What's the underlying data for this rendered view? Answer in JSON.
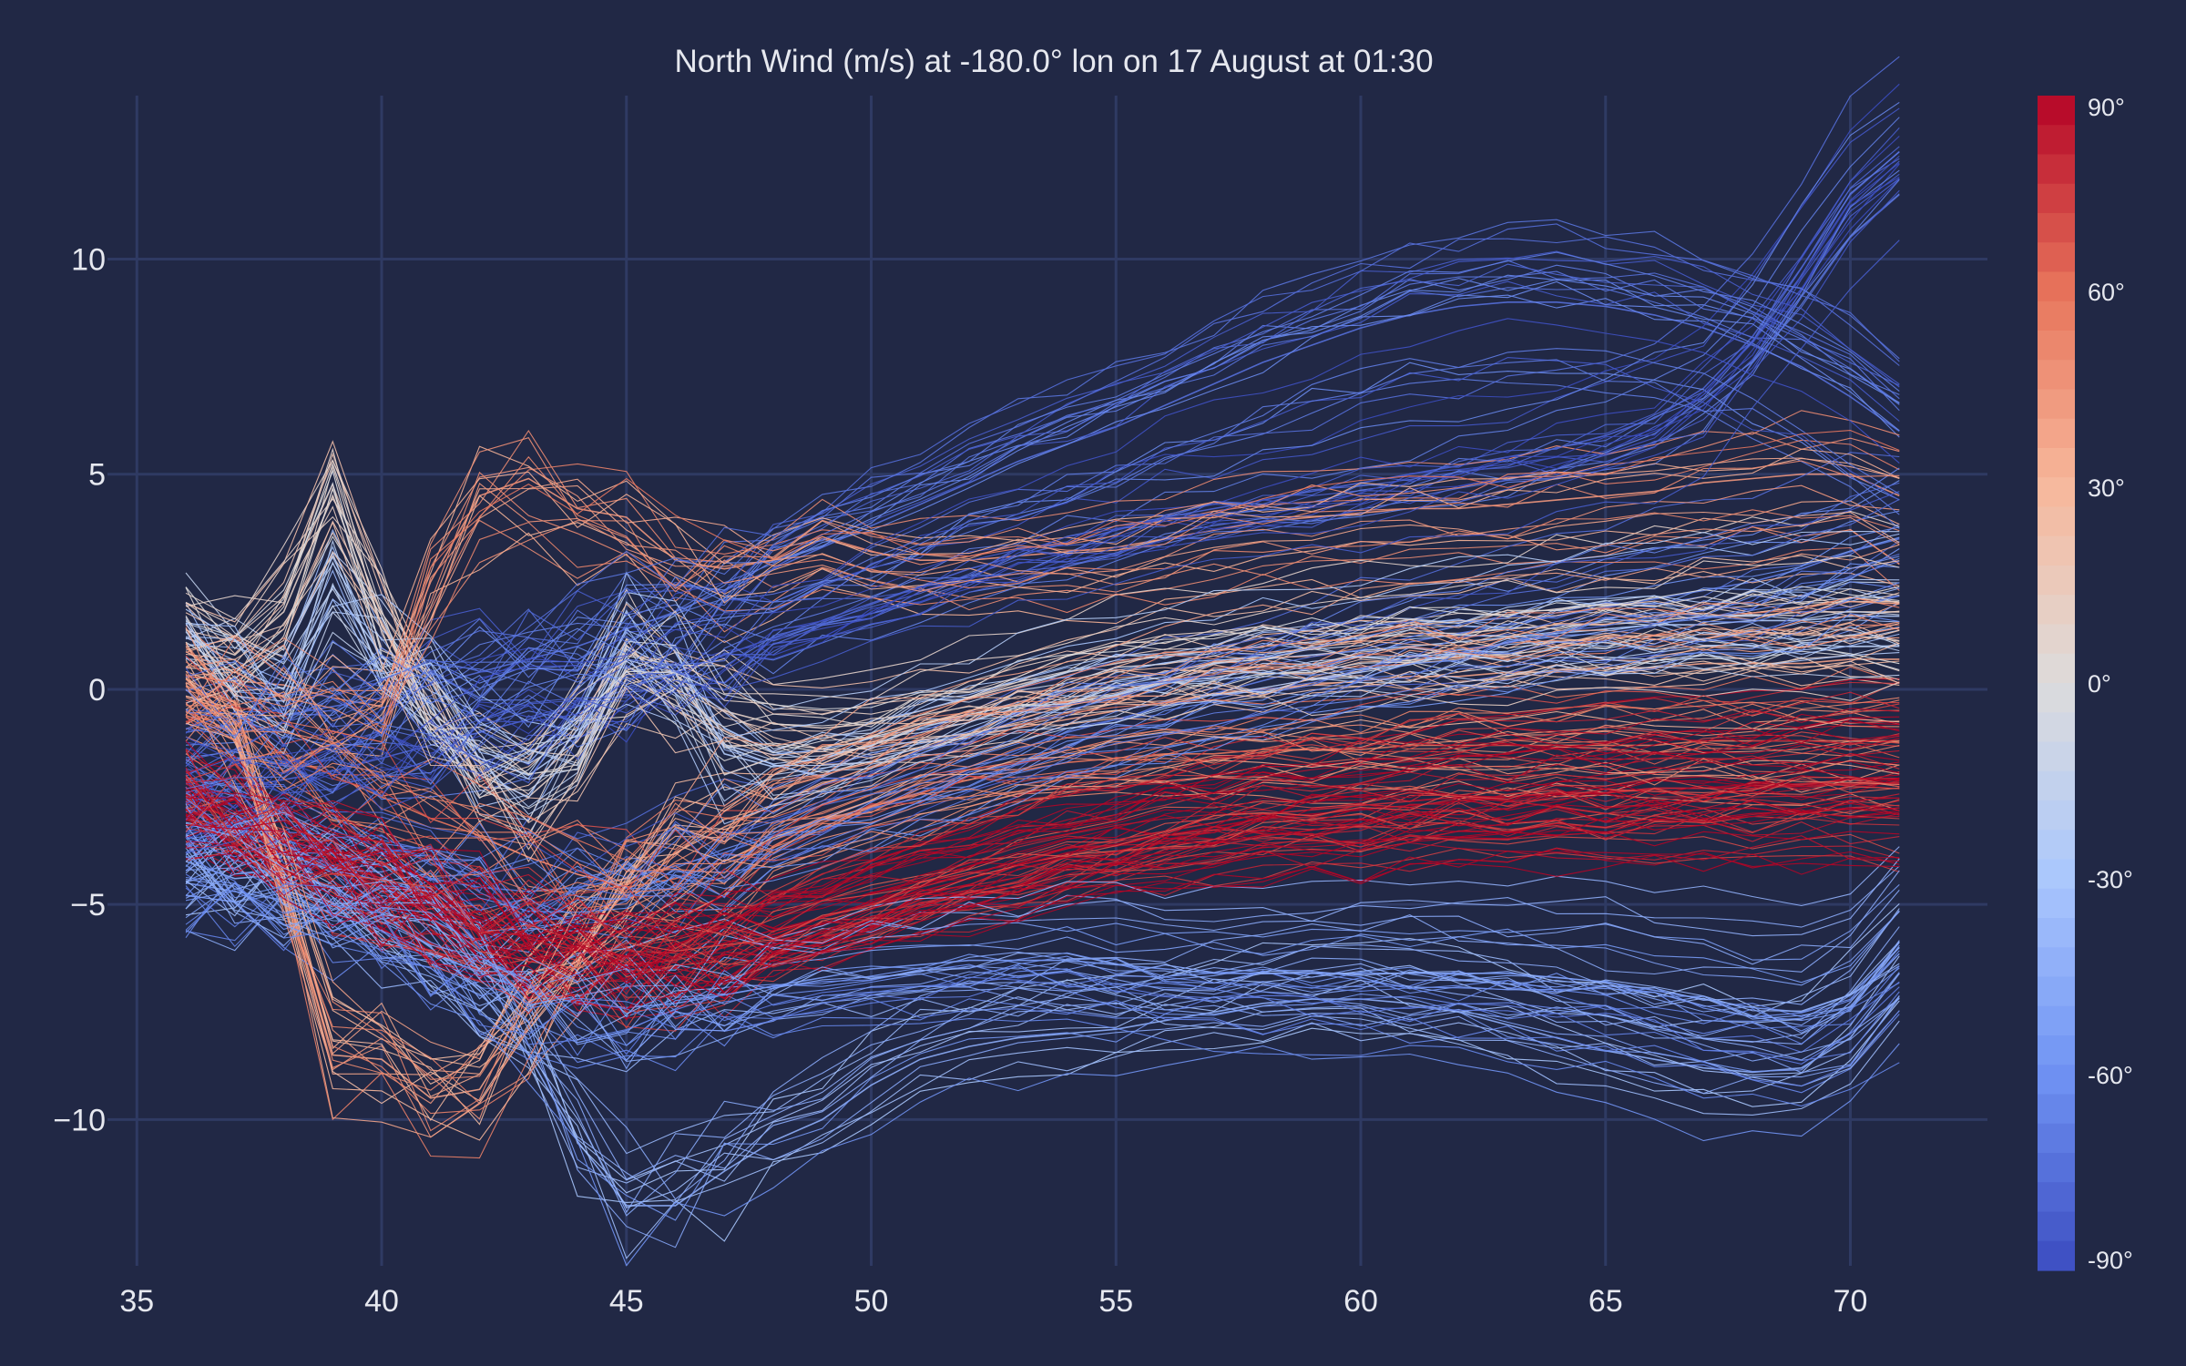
{
  "chart_data": {
    "type": "line",
    "title": "North Wind (m/s) at -180.0° lon on 17 August at 01:30",
    "xlabel": "",
    "ylabel": "",
    "xlim": [
      34.4,
      72.8
    ],
    "ylim": [
      -13.4,
      13.8
    ],
    "x_ticks": [
      35,
      40,
      45,
      50,
      55,
      60,
      65,
      70
    ],
    "y_ticks": [
      10,
      5,
      0,
      -5,
      -10
    ],
    "y_tick_labels": [
      "10",
      "5",
      "0",
      "−5",
      "−10"
    ],
    "grid": true,
    "x": [
      36,
      37,
      38,
      39,
      40,
      41,
      42,
      43,
      44,
      45,
      46,
      47,
      48,
      49,
      50,
      51,
      52,
      53,
      54,
      55,
      56,
      57,
      58,
      59,
      60,
      61,
      62,
      63,
      64,
      65,
      66,
      67,
      68,
      69,
      70,
      71
    ],
    "colorbar": {
      "title": "",
      "range": [
        -90,
        90
      ],
      "ticks": [
        90,
        60,
        30,
        0,
        -30,
        -60,
        -90
      ],
      "tick_labels": [
        "90°",
        "60°",
        "30°",
        "0°",
        "-30°",
        "-60°",
        "-90°"
      ],
      "colormap": "coolwarm",
      "colors": [
        "#3b4cc0",
        "#6f92f3",
        "#aac7fd",
        "#dddcdc",
        "#f7b89c",
        "#e7745b",
        "#b40426"
      ]
    },
    "line_count": 280,
    "series": [
      {
        "name": "",
        "color_value": 90,
        "values": [
          -2.6,
          -3.0,
          -3.4,
          -3.9,
          -4.4,
          -4.9,
          -5.3,
          -5.7,
          -6.0,
          -6.2,
          -6.1,
          -5.9,
          -5.6,
          -5.3,
          -5.0,
          -4.7,
          -4.4,
          -4.1,
          -3.8,
          -3.6,
          -3.4,
          -3.2,
          -3.0,
          -2.9,
          -2.8,
          -2.7,
          -2.6,
          -2.5,
          -2.4,
          -2.4,
          -2.3,
          -2.3,
          -2.2,
          -2.2,
          -2.1,
          -2.1
        ]
      },
      {
        "name": "",
        "color_value": 80,
        "values": [
          -2.8,
          -3.2,
          -3.7,
          -4.2,
          -4.7,
          -5.2,
          -5.6,
          -6.0,
          -6.3,
          -6.4,
          -6.3,
          -6.0,
          -5.7,
          -5.3,
          -5.0,
          -4.6,
          -4.3,
          -4.0,
          -3.7,
          -3.5,
          -3.3,
          -3.1,
          -2.9,
          -2.8,
          -2.7,
          -2.6,
          -2.5,
          -2.5,
          -2.4,
          -2.4,
          -2.3,
          -2.3,
          -2.3,
          -2.2,
          -2.2,
          -2.2
        ]
      },
      {
        "name": "",
        "color_value": 60,
        "values": [
          -0.5,
          -1.0,
          -1.5,
          -2.0,
          -2.5,
          -3.0,
          -3.4,
          -3.9,
          -4.3,
          -4.6,
          -4.4,
          -4.0,
          -3.5,
          -3.1,
          -2.7,
          -2.4,
          -2.1,
          -1.9,
          -1.7,
          -1.6,
          -1.5,
          -1.5,
          -1.4,
          -1.4,
          -1.4,
          -1.3,
          -1.3,
          -1.3,
          -1.3,
          -1.3,
          -1.3,
          -1.2,
          -1.2,
          -1.2,
          -1.2,
          -1.2
        ]
      },
      {
        "name": "",
        "color_value": 45,
        "values": [
          0.3,
          0.2,
          0.1,
          -0.2,
          -0.4,
          2.5,
          4.5,
          4.9,
          4.2,
          4.0,
          3.0,
          2.8,
          3.0,
          3.5,
          3.2,
          3.0,
          3.0,
          3.1,
          3.2,
          3.3,
          3.5,
          3.7,
          3.9,
          4.0,
          4.1,
          4.2,
          4.2,
          4.3,
          4.4,
          4.5,
          4.6,
          4.8,
          4.9,
          5.0,
          5.0,
          4.5
        ]
      },
      {
        "name": "",
        "color_value": 40,
        "values": [
          0.0,
          -1.0,
          -4.5,
          -8.5,
          -8.6,
          -9.5,
          -9.3,
          -7.5,
          -6.0,
          -4.5,
          -3.8,
          -3.2,
          -2.7,
          -2.2,
          -1.8,
          -1.4,
          -1.1,
          -0.9,
          -0.7,
          -0.5,
          -0.3,
          -0.1,
          0.0,
          0.1,
          0.2,
          0.3,
          0.3,
          0.4,
          0.4,
          0.5,
          0.5,
          0.6,
          0.6,
          0.6,
          0.7,
          0.7
        ]
      },
      {
        "name": "",
        "color_value": 10,
        "values": [
          1.2,
          0.8,
          1.8,
          4.5,
          1.5,
          -0.5,
          -2.0,
          -2.5,
          -1.5,
          0.5,
          0.2,
          -0.5,
          -0.8,
          -0.9,
          -0.8,
          -0.5,
          -0.2,
          0.1,
          0.4,
          0.6,
          0.8,
          0.9,
          1.0,
          1.1,
          1.2,
          1.3,
          1.3,
          1.4,
          1.5,
          1.5,
          1.6,
          1.7,
          1.7,
          1.8,
          1.8,
          1.8
        ]
      },
      {
        "name": "",
        "color_value": -25,
        "values": [
          1.4,
          0.5,
          0.0,
          2.4,
          0.8,
          -0.3,
          -1.6,
          -2.0,
          -1.2,
          1.0,
          0.4,
          -1.5,
          -1.8,
          -1.6,
          -1.3,
          -0.9,
          -0.6,
          -0.3,
          0.0,
          0.2,
          0.4,
          0.6,
          0.7,
          0.8,
          0.9,
          1.0,
          1.1,
          1.2,
          1.3,
          1.4,
          1.5,
          1.5,
          1.6,
          1.6,
          1.7,
          1.7
        ]
      },
      {
        "name": "",
        "color_value": -45,
        "values": [
          -4.0,
          -4.4,
          -4.3,
          -4.6,
          -5.2,
          -6.0,
          -7.0,
          -8.5,
          -10.5,
          -12.0,
          -12.0,
          -11.2,
          -10.5,
          -10.0,
          -9.2,
          -8.6,
          -8.3,
          -8.1,
          -8.0,
          -7.9,
          -7.7,
          -7.5,
          -7.3,
          -7.2,
          -7.2,
          -7.3,
          -7.5,
          -7.8,
          -8.1,
          -8.4,
          -8.6,
          -8.8,
          -8.9,
          -8.8,
          -8.1,
          -6.6
        ]
      },
      {
        "name": "",
        "color_value": -55,
        "values": [
          -4.5,
          -4.7,
          -4.9,
          -5.2,
          -5.6,
          -6.1,
          -6.6,
          -7.0,
          -7.3,
          -7.4,
          -7.3,
          -7.1,
          -6.9,
          -6.7,
          -6.5,
          -6.4,
          -6.3,
          -6.3,
          -6.3,
          -6.4,
          -6.5,
          -6.6,
          -6.6,
          -6.6,
          -6.6,
          -6.6,
          -6.6,
          -6.6,
          -6.7,
          -6.8,
          -7.0,
          -7.2,
          -7.4,
          -7.5,
          -7.1,
          -6.0
        ]
      },
      {
        "name": "",
        "color_value": -75,
        "values": [
          -1.0,
          -0.8,
          -0.6,
          -0.4,
          -0.2,
          0.1,
          0.4,
          0.7,
          1.0,
          1.4,
          1.8,
          2.3,
          2.8,
          3.3,
          3.8,
          4.3,
          4.8,
          5.3,
          5.7,
          6.1,
          6.6,
          7.1,
          7.6,
          8.0,
          8.4,
          8.7,
          8.9,
          9.0,
          9.0,
          8.9,
          8.7,
          8.4,
          8.0,
          7.5,
          6.8,
          6.0
        ]
      },
      {
        "name": "",
        "color_value": -80,
        "values": [
          -2.5,
          -2.3,
          -2.1,
          -1.9,
          -1.6,
          -1.3,
          -1.0,
          -0.7,
          -0.4,
          0.0,
          0.4,
          0.8,
          1.2,
          1.6,
          2.0,
          2.4,
          2.8,
          3.1,
          3.4,
          3.7,
          4.0,
          4.2,
          4.4,
          4.6,
          4.8,
          5.0,
          5.2,
          5.4,
          5.6,
          5.9,
          6.3,
          7.0,
          8.2,
          9.8,
          11.5,
          12.5
        ]
      },
      {
        "name": "",
        "color_value": -70,
        "values": [
          -3.0,
          -3.2,
          -3.5,
          -3.8,
          -4.1,
          -4.4,
          -4.6,
          -4.7,
          -4.6,
          -4.4,
          -4.1,
          -3.8,
          -3.4,
          -3.0,
          -2.6,
          -2.2,
          -1.8,
          -1.4,
          -1.0,
          -0.7,
          -0.4,
          -0.1,
          0.2,
          0.5,
          0.8,
          1.1,
          1.3,
          1.5,
          1.7,
          1.9,
          2.1,
          2.3,
          2.5,
          2.8,
          3.2,
          3.5
        ]
      }
    ]
  }
}
